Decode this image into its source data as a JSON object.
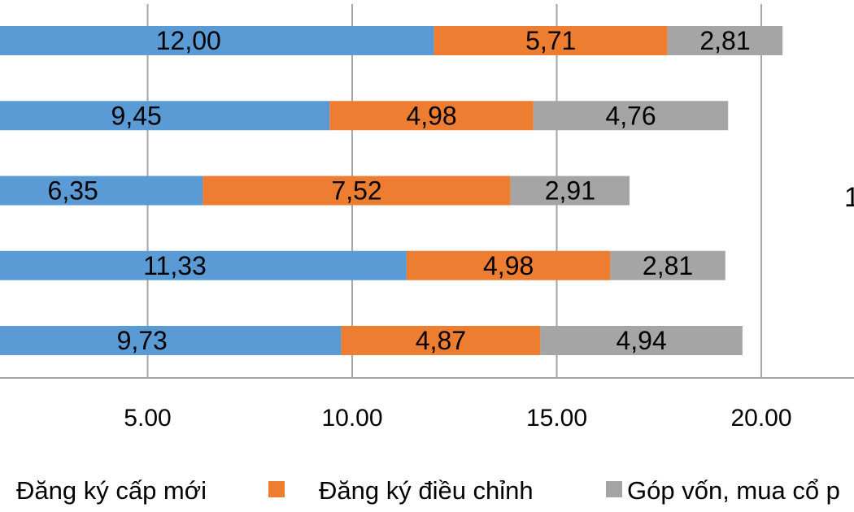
{
  "chart_data": {
    "type": "bar",
    "orientation": "horizontal",
    "stacked": true,
    "title": "",
    "xlabel": "",
    "ylabel": "",
    "xlim": [
      0,
      23
    ],
    "x_ticks": [
      5,
      10,
      15,
      20
    ],
    "x_tick_labels": [
      "5.00",
      "10.00",
      "15.00",
      "20.00"
    ],
    "grid": true,
    "legend_position": "bottom",
    "series": [
      {
        "name": "Đăng ký cấp mới",
        "color": "#5b9bd5",
        "values": [
          12.0,
          9.45,
          6.35,
          11.33,
          9.73
        ],
        "labels": [
          "12,00",
          "9,45",
          "6,35",
          "11,33",
          "9,73"
        ]
      },
      {
        "name": "Đăng ký điều chỉnh",
        "color": "#ed7d31",
        "values": [
          5.71,
          4.98,
          7.52,
          4.98,
          4.87
        ],
        "labels": [
          "5,71",
          "4,98",
          "7,52",
          "4,98",
          "4,87"
        ]
      },
      {
        "name": "Góp vốn, mua cổ p",
        "color": "#a5a5a5",
        "values": [
          2.81,
          4.76,
          2.91,
          2.81,
          4.94
        ],
        "labels": [
          "2,81",
          "4,76",
          "2,91",
          "2,81",
          "4,94"
        ]
      }
    ],
    "annotations": [
      {
        "text": "1"
      }
    ]
  }
}
